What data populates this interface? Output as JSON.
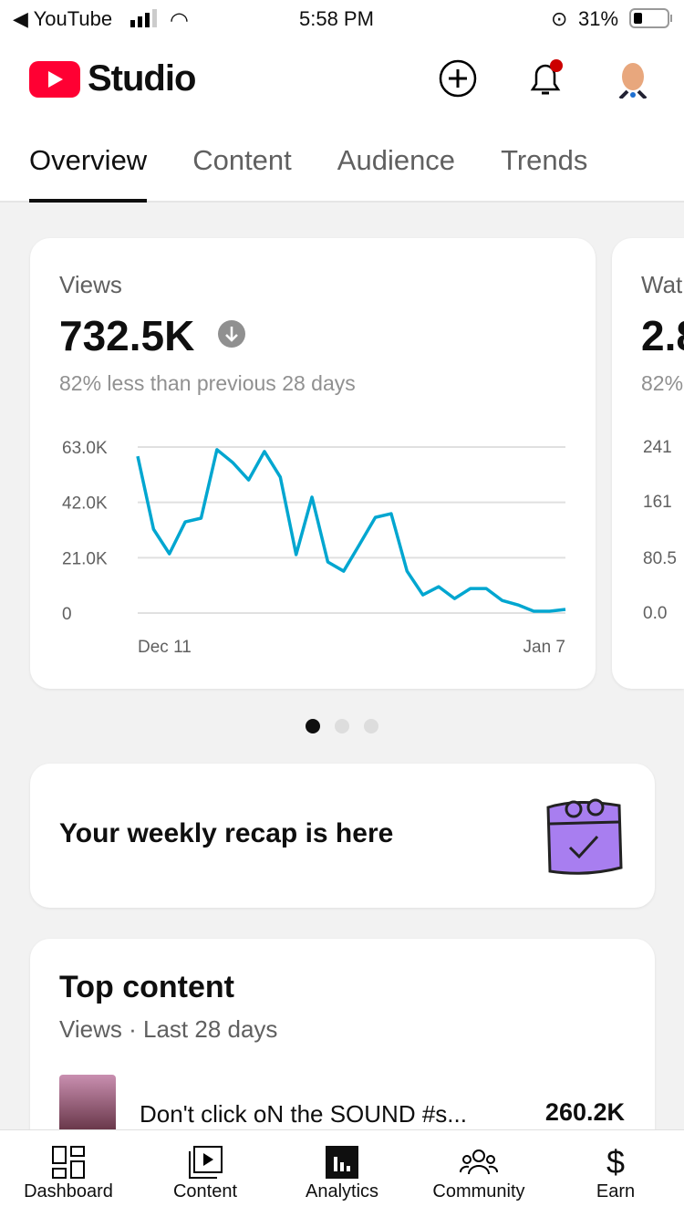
{
  "status": {
    "back_app": "YouTube",
    "time": "5:58 PM",
    "battery": "31%"
  },
  "header": {
    "logo_text": "Studio"
  },
  "tabs": [
    "Overview",
    "Content",
    "Audience",
    "Trends"
  ],
  "views_card": {
    "label": "Views",
    "value": "732.5K",
    "comparison": "82% less than previous 28 days"
  },
  "watch_card": {
    "label": "Wat",
    "value": "2.8",
    "comparison": "82%",
    "y_ticks": [
      "241",
      "161",
      "80.5",
      "0.0"
    ]
  },
  "chart_data": {
    "type": "line",
    "title": "Views",
    "ylim": [
      0,
      63000
    ],
    "y_ticks": [
      "63.0K",
      "42.0K",
      "21.0K",
      "0"
    ],
    "y_tick_values": [
      63000,
      42000,
      21000,
      0
    ],
    "x_labels": [
      "Dec 11",
      "Jan 7"
    ],
    "color": "#00a6d0",
    "values": [
      59500,
      31800,
      22500,
      34600,
      36000,
      62000,
      57100,
      50500,
      61300,
      51600,
      22200,
      44000,
      19400,
      15900,
      26000,
      36300,
      37700,
      15900,
      6900,
      10000,
      5500,
      9300,
      9300,
      4800,
      3100,
      700,
      700,
      1400
    ]
  },
  "carousel": {
    "pages": 3,
    "active": 0
  },
  "recap": {
    "text": "Your weekly recap is here"
  },
  "top_content": {
    "title": "Top content",
    "subtitle": "Views · Last 28 days",
    "items": [
      {
        "title": "Don't click oN the SOUND #s...",
        "views": "260.2K"
      }
    ]
  },
  "nav": [
    "Dashboard",
    "Content",
    "Analytics",
    "Community",
    "Earn"
  ]
}
